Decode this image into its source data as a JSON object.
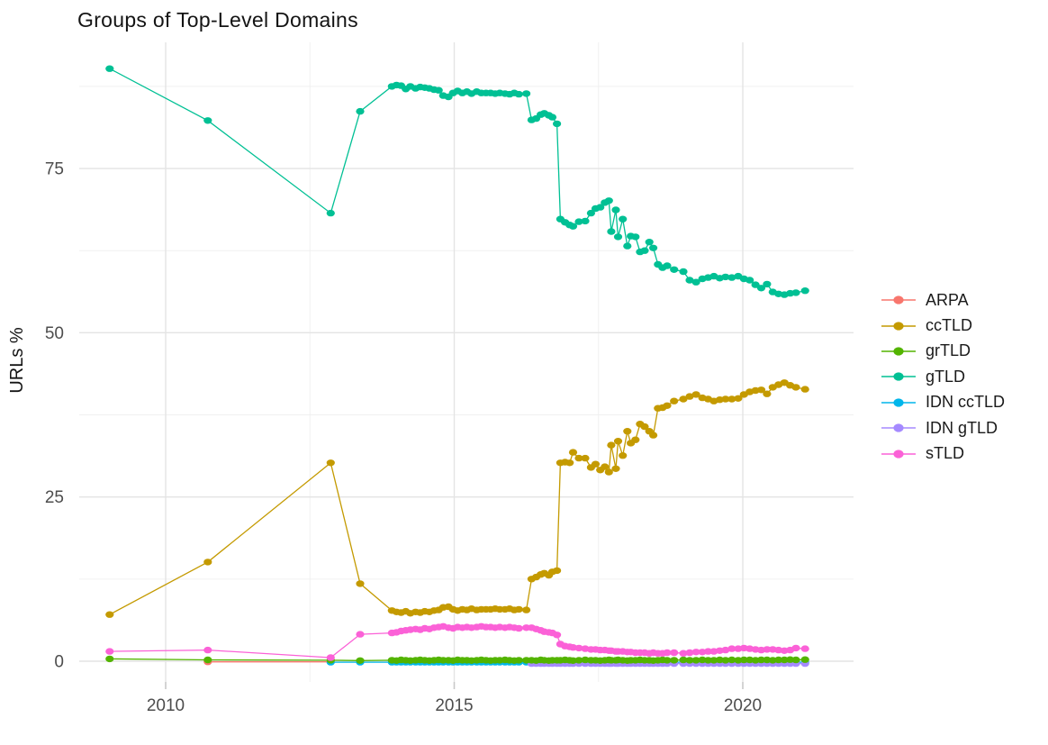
{
  "title": "Groups of Top-Level Domains",
  "axes": {
    "y_label": "URLs %",
    "y_ticks": [
      0,
      25,
      50,
      75
    ],
    "y_minor": [
      12.5,
      37.5,
      62.5,
      87.5
    ],
    "x_ticks": [
      2010,
      2015,
      2020
    ],
    "x_minor": [
      2012.5,
      2017.5
    ]
  },
  "legend": {
    "items": [
      {
        "label": "ARPA",
        "color": "#F8766D"
      },
      {
        "label": "ccTLD",
        "color": "#C49A00"
      },
      {
        "label": "grTLD",
        "color": "#53B400"
      },
      {
        "label": "gTLD",
        "color": "#00C094"
      },
      {
        "label": "IDN ccTLD",
        "color": "#00B6EB"
      },
      {
        "label": "IDN gTLD",
        "color": "#A58AFF"
      },
      {
        "label": "sTLD",
        "color": "#FB61D7"
      }
    ]
  },
  "chart_data": {
    "type": "line",
    "title": "Groups of Top-Level Domains",
    "xlabel": "",
    "ylabel": "URLs %",
    "x_range": [
      2008.5,
      2021.9
    ],
    "y_range": [
      -3.2,
      94.2
    ],
    "grid": true,
    "legend_position": "right",
    "draw_order": [
      "ARPA",
      "IDN ccTLD",
      "IDN gTLD",
      "grTLD",
      "gTLD",
      "ccTLD",
      "sTLD"
    ],
    "series": [
      {
        "name": "ARPA",
        "color": "#F8766D",
        "x": [
          2010.73,
          2012.86
        ],
        "y": [
          -0.1,
          -0.1
        ]
      },
      {
        "name": "IDN ccTLD",
        "color": "#00B6EB",
        "x": [
          2012.86,
          2013.37,
          2013.92,
          2014.0,
          2014.08,
          2014.16,
          2014.24,
          2014.33,
          2014.41,
          2014.49,
          2014.57,
          2014.65,
          2014.73,
          2014.81,
          2014.9,
          2014.98,
          2015.06,
          2015.14,
          2015.22,
          2015.3,
          2015.39,
          2015.47,
          2015.55,
          2015.63,
          2015.71,
          2015.79,
          2015.88,
          2015.96,
          2016.04,
          2016.12,
          2016.25,
          2016.34,
          2016.42,
          2016.5,
          2016.56,
          2016.64,
          2016.7,
          2016.78,
          2016.84,
          2016.92,
          2017.0,
          2017.06,
          2017.16,
          2017.27,
          2017.37,
          2017.45,
          2017.53,
          2017.61,
          2017.68,
          2017.72,
          2017.8,
          2017.84,
          2017.92,
          2018.0,
          2018.06,
          2018.14,
          2018.22,
          2018.3,
          2018.38,
          2018.45,
          2018.53,
          2018.61,
          2018.69,
          2018.81,
          2018.97,
          2019.08,
          2019.19,
          2019.3,
          2019.4,
          2019.5,
          2019.6,
          2019.7,
          2019.81,
          2019.92,
          2020.02,
          2020.12,
          2020.22,
          2020.32,
          2020.42,
          2020.52,
          2020.62,
          2020.72,
          2020.82,
          2020.92,
          2021.08
        ],
        "y_const": -0.15
      },
      {
        "name": "IDN gTLD",
        "color": "#A58AFF",
        "x": [
          2016.34,
          2016.42,
          2016.5,
          2016.56,
          2016.64,
          2016.7,
          2016.78,
          2016.84,
          2016.92,
          2017.0,
          2017.06,
          2017.16,
          2017.27,
          2017.37,
          2017.45,
          2017.53,
          2017.61,
          2017.68,
          2017.72,
          2017.8,
          2017.84,
          2017.92,
          2018.0,
          2018.06,
          2018.14,
          2018.22,
          2018.3,
          2018.38,
          2018.45,
          2018.53,
          2018.61,
          2018.69,
          2018.81,
          2018.97,
          2019.08,
          2019.19,
          2019.3,
          2019.4,
          2019.5,
          2019.6,
          2019.7,
          2019.81,
          2019.92,
          2020.02,
          2020.12,
          2020.22,
          2020.32,
          2020.42,
          2020.52,
          2020.62,
          2020.72,
          2020.82,
          2020.92,
          2021.08
        ],
        "y_const": -0.35
      },
      {
        "name": "grTLD",
        "color": "#53B400",
        "x": [
          2009.03,
          2010.73,
          2012.86,
          2013.37,
          2013.92,
          2014.0,
          2014.08,
          2014.16,
          2014.24,
          2014.33,
          2014.41,
          2014.49,
          2014.57,
          2014.65,
          2014.73,
          2014.81,
          2014.9,
          2014.98,
          2015.06,
          2015.14,
          2015.22,
          2015.3,
          2015.39,
          2015.47,
          2015.55,
          2015.63,
          2015.71,
          2015.79,
          2015.88,
          2015.96,
          2016.04,
          2016.12,
          2016.25,
          2016.34,
          2016.42,
          2016.5,
          2016.56,
          2016.64,
          2016.7,
          2016.78,
          2016.84,
          2016.92,
          2017.0,
          2017.06,
          2017.16,
          2017.27,
          2017.37,
          2017.45,
          2017.53,
          2017.61,
          2017.68,
          2017.72,
          2017.8,
          2017.84,
          2017.92,
          2018.0,
          2018.06,
          2018.14,
          2018.22,
          2018.3,
          2018.38,
          2018.45,
          2018.53,
          2018.61,
          2018.69,
          2018.81,
          2018.97,
          2019.08,
          2019.19,
          2019.3,
          2019.4,
          2019.5,
          2019.6,
          2019.7,
          2019.81,
          2019.92,
          2020.02,
          2020.12,
          2020.22,
          2020.32,
          2020.42,
          2020.52,
          2020.62,
          2020.72,
          2020.82,
          2020.92,
          2021.08
        ],
        "y": [
          0.35,
          0.2,
          0.15,
          0.1,
          0.15,
          0.1,
          0.2,
          0.15,
          0.1,
          0.15,
          0.2,
          0.15,
          0.1,
          0.15,
          0.2,
          0.15,
          0.15,
          0.1,
          0.2,
          0.15,
          0.15,
          0.1,
          0.15,
          0.2,
          0.15,
          0.1,
          0.15,
          0.15,
          0.2,
          0.15,
          0.1,
          0.15,
          0.15,
          0.15,
          0.1,
          0.2,
          0.15,
          0.1,
          0.15,
          0.15,
          0.15,
          0.2,
          0.15,
          0.1,
          0.15,
          0.2,
          0.15,
          0.15,
          0.1,
          0.15,
          0.2,
          0.15,
          0.15,
          0.2,
          0.15,
          0.1,
          0.15,
          0.15,
          0.2,
          0.15,
          0.15,
          0.1,
          0.15,
          0.2,
          0.15,
          0.15,
          0.2,
          0.15,
          0.15,
          0.2,
          0.15,
          0.15,
          0.2,
          0.15,
          0.2,
          0.15,
          0.2,
          0.2,
          0.15,
          0.2,
          0.2,
          0.15,
          0.2,
          0.2,
          0.25,
          0.2,
          0.25
        ]
      },
      {
        "name": "gTLD",
        "color": "#00C094",
        "x": [
          2009.03,
          2010.73,
          2012.86,
          2013.37,
          2013.92,
          2014.0,
          2014.08,
          2014.16,
          2014.24,
          2014.33,
          2014.41,
          2014.49,
          2014.57,
          2014.65,
          2014.73,
          2014.81,
          2014.9,
          2014.98,
          2015.06,
          2015.14,
          2015.22,
          2015.3,
          2015.39,
          2015.47,
          2015.55,
          2015.63,
          2015.71,
          2015.79,
          2015.88,
          2015.96,
          2016.04,
          2016.12,
          2016.25,
          2016.34,
          2016.42,
          2016.5,
          2016.56,
          2016.64,
          2016.7,
          2016.78,
          2016.84,
          2016.92,
          2017.0,
          2017.06,
          2017.16,
          2017.27,
          2017.37,
          2017.45,
          2017.53,
          2017.61,
          2017.68,
          2017.72,
          2017.8,
          2017.84,
          2017.92,
          2018.0,
          2018.06,
          2018.14,
          2018.22,
          2018.3,
          2018.38,
          2018.45,
          2018.53,
          2018.61,
          2018.69,
          2018.81,
          2018.97,
          2019.08,
          2019.19,
          2019.3,
          2019.4,
          2019.5,
          2019.6,
          2019.7,
          2019.81,
          2019.92,
          2020.02,
          2020.12,
          2020.22,
          2020.32,
          2020.42,
          2020.52,
          2020.62,
          2020.72,
          2020.82,
          2020.92,
          2021.08
        ],
        "y": [
          90.2,
          82.3,
          68.2,
          83.7,
          87.5,
          87.7,
          87.6,
          87.1,
          87.5,
          87.2,
          87.4,
          87.3,
          87.2,
          87.0,
          86.9,
          86.1,
          85.9,
          86.5,
          86.8,
          86.5,
          86.7,
          86.4,
          86.7,
          86.5,
          86.5,
          86.5,
          86.4,
          86.5,
          86.4,
          86.3,
          86.5,
          86.3,
          86.4,
          82.4,
          82.6,
          83.2,
          83.4,
          83.1,
          82.8,
          81.8,
          67.3,
          66.8,
          66.4,
          66.2,
          66.9,
          67.0,
          68.2,
          68.9,
          69.1,
          69.8,
          70.1,
          65.4,
          68.7,
          64.6,
          67.3,
          63.2,
          64.7,
          64.6,
          62.3,
          62.5,
          63.8,
          62.9,
          60.4,
          59.9,
          60.2,
          59.6,
          59.3,
          58.0,
          57.7,
          58.2,
          58.4,
          58.6,
          58.3,
          58.5,
          58.4,
          58.6,
          58.2,
          58.0,
          57.3,
          56.8,
          57.4,
          56.2,
          55.9,
          55.8,
          56.0,
          56.1,
          56.4
        ]
      },
      {
        "name": "ccTLD",
        "color": "#C49A00",
        "x": [
          2009.03,
          2010.73,
          2012.86,
          2013.37,
          2013.92,
          2014.0,
          2014.08,
          2014.16,
          2014.24,
          2014.33,
          2014.41,
          2014.49,
          2014.57,
          2014.65,
          2014.73,
          2014.81,
          2014.9,
          2014.98,
          2015.06,
          2015.14,
          2015.22,
          2015.3,
          2015.39,
          2015.47,
          2015.55,
          2015.63,
          2015.71,
          2015.79,
          2015.88,
          2015.96,
          2016.04,
          2016.12,
          2016.25,
          2016.34,
          2016.42,
          2016.5,
          2016.56,
          2016.64,
          2016.7,
          2016.78,
          2016.84,
          2016.92,
          2017.0,
          2017.06,
          2017.16,
          2017.27,
          2017.37,
          2017.45,
          2017.53,
          2017.61,
          2017.68,
          2017.72,
          2017.8,
          2017.84,
          2017.92,
          2018.0,
          2018.06,
          2018.14,
          2018.22,
          2018.3,
          2018.38,
          2018.45,
          2018.53,
          2018.61,
          2018.69,
          2018.81,
          2018.97,
          2019.08,
          2019.19,
          2019.3,
          2019.4,
          2019.5,
          2019.6,
          2019.7,
          2019.81,
          2019.92,
          2020.02,
          2020.12,
          2020.22,
          2020.32,
          2020.42,
          2020.52,
          2020.62,
          2020.72,
          2020.82,
          2020.92,
          2021.08
        ],
        "y": [
          7.1,
          15.1,
          30.2,
          11.8,
          7.7,
          7.5,
          7.4,
          7.6,
          7.3,
          7.5,
          7.4,
          7.6,
          7.5,
          7.7,
          7.8,
          8.2,
          8.3,
          7.9,
          7.7,
          7.9,
          7.8,
          8.0,
          7.8,
          7.9,
          7.9,
          7.9,
          8.0,
          7.9,
          7.9,
          8.0,
          7.8,
          7.9,
          7.8,
          12.5,
          12.8,
          13.2,
          13.4,
          13.1,
          13.6,
          13.8,
          30.2,
          30.3,
          30.2,
          31.8,
          30.9,
          30.9,
          29.5,
          30.0,
          29.1,
          29.6,
          28.8,
          32.9,
          29.3,
          33.5,
          31.3,
          35.0,
          33.2,
          33.7,
          36.1,
          35.7,
          35.0,
          34.4,
          38.5,
          38.6,
          38.9,
          39.6,
          39.9,
          40.3,
          40.6,
          40.1,
          39.9,
          39.6,
          39.8,
          39.9,
          39.9,
          40.0,
          40.6,
          41.0,
          41.2,
          41.3,
          40.7,
          41.7,
          42.1,
          42.4,
          42.0,
          41.7,
          41.4
        ]
      },
      {
        "name": "sTLD",
        "color": "#FB61D7",
        "x": [
          2009.03,
          2010.73,
          2012.86,
          2013.37,
          2013.92,
          2014.0,
          2014.08,
          2014.16,
          2014.24,
          2014.33,
          2014.41,
          2014.49,
          2014.57,
          2014.65,
          2014.73,
          2014.81,
          2014.9,
          2014.98,
          2015.06,
          2015.14,
          2015.22,
          2015.3,
          2015.39,
          2015.47,
          2015.55,
          2015.63,
          2015.71,
          2015.79,
          2015.88,
          2015.96,
          2016.04,
          2016.12,
          2016.25,
          2016.34,
          2016.42,
          2016.5,
          2016.56,
          2016.64,
          2016.7,
          2016.78,
          2016.84,
          2016.92,
          2017.0,
          2017.06,
          2017.16,
          2017.27,
          2017.37,
          2017.45,
          2017.53,
          2017.61,
          2017.68,
          2017.72,
          2017.8,
          2017.84,
          2017.92,
          2018.0,
          2018.06,
          2018.14,
          2018.22,
          2018.3,
          2018.38,
          2018.45,
          2018.53,
          2018.61,
          2018.69,
          2018.81,
          2018.97,
          2019.08,
          2019.19,
          2019.3,
          2019.4,
          2019.5,
          2019.6,
          2019.7,
          2019.81,
          2019.92,
          2020.02,
          2020.12,
          2020.22,
          2020.32,
          2020.42,
          2020.52,
          2020.62,
          2020.72,
          2020.82,
          2020.92,
          2021.08
        ],
        "y": [
          1.5,
          1.7,
          0.55,
          4.1,
          4.3,
          4.4,
          4.6,
          4.7,
          4.8,
          4.9,
          4.8,
          5.0,
          4.9,
          5.1,
          5.2,
          5.3,
          5.1,
          5.0,
          5.2,
          5.1,
          5.2,
          5.1,
          5.2,
          5.3,
          5.2,
          5.2,
          5.1,
          5.2,
          5.1,
          5.2,
          5.1,
          5.0,
          5.1,
          5.1,
          4.9,
          4.7,
          4.5,
          4.4,
          4.3,
          4.0,
          2.6,
          2.3,
          2.2,
          2.1,
          2.0,
          1.9,
          1.8,
          1.8,
          1.7,
          1.7,
          1.6,
          1.6,
          1.5,
          1.5,
          1.5,
          1.4,
          1.4,
          1.3,
          1.3,
          1.3,
          1.2,
          1.3,
          1.2,
          1.2,
          1.3,
          1.3,
          1.2,
          1.3,
          1.4,
          1.4,
          1.5,
          1.5,
          1.6,
          1.7,
          1.9,
          1.9,
          2.0,
          1.9,
          1.8,
          1.7,
          1.8,
          1.8,
          1.7,
          1.6,
          1.7,
          2.0,
          1.9
        ]
      }
    ]
  }
}
